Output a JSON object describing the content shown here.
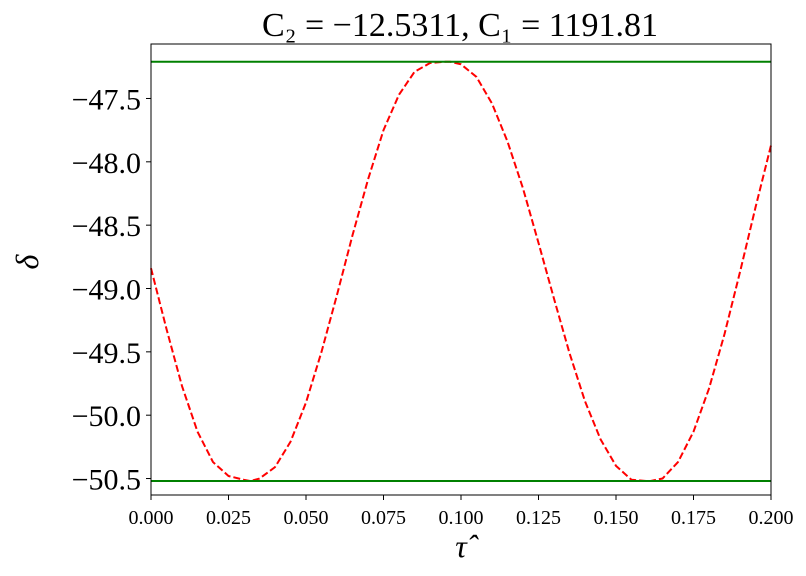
{
  "chart_data": {
    "type": "line",
    "title": "C₂ = −12.5311,  C₁ = 1191.81",
    "xlabel": "τ̂",
    "ylabel": "δ",
    "xlim": [
      0.0,
      0.2
    ],
    "ylim": [
      -50.63,
      -47.07
    ],
    "x_ticks": [
      0.0,
      0.025,
      0.05,
      0.075,
      0.1,
      0.125,
      0.15,
      0.175,
      0.2
    ],
    "x_tick_labels": [
      "0.000",
      "0.025",
      "0.050",
      "0.075",
      "0.100",
      "0.125",
      "0.150",
      "0.175",
      "0.200"
    ],
    "y_ticks": [
      -47.5,
      -48.0,
      -48.5,
      -49.0,
      -49.5,
      -50.0,
      -50.5
    ],
    "y_tick_labels": [
      "−47.5",
      "−48.0",
      "−48.5",
      "−49.0",
      "−49.5",
      "−50.0",
      "−50.5"
    ],
    "grid": false,
    "series": [
      {
        "style": "dashed",
        "color": "#ff0000",
        "x": [
          0.0,
          0.005,
          0.01,
          0.015,
          0.02,
          0.025,
          0.03,
          0.032,
          0.035,
          0.04,
          0.045,
          0.05,
          0.055,
          0.06,
          0.065,
          0.07,
          0.075,
          0.08,
          0.085,
          0.09,
          0.095,
          0.0965,
          0.1,
          0.105,
          0.11,
          0.115,
          0.12,
          0.125,
          0.13,
          0.135,
          0.14,
          0.145,
          0.15,
          0.155,
          0.16,
          0.161,
          0.165,
          0.17,
          0.175,
          0.18,
          0.185,
          0.19,
          0.195,
          0.2
        ],
        "y": [
          -48.84,
          -49.32,
          -49.77,
          -50.13,
          -50.37,
          -50.48,
          -50.51,
          -50.52,
          -50.5,
          -50.41,
          -50.21,
          -49.9,
          -49.5,
          -49.05,
          -48.58,
          -48.14,
          -47.75,
          -47.47,
          -47.29,
          -47.22,
          -47.21,
          -47.21,
          -47.23,
          -47.33,
          -47.54,
          -47.84,
          -48.21,
          -48.64,
          -49.08,
          -49.51,
          -49.89,
          -50.19,
          -50.4,
          -50.51,
          -50.52,
          -50.52,
          -50.5,
          -50.37,
          -50.13,
          -49.79,
          -49.36,
          -48.87,
          -48.36,
          -47.87
        ]
      },
      {
        "style": "solid",
        "color": "#008000",
        "x": [
          0.0,
          0.2
        ],
        "y": [
          -47.21,
          -47.21
        ]
      },
      {
        "style": "solid",
        "color": "#008000",
        "x": [
          0.0,
          0.2
        ],
        "y": [
          -50.52,
          -50.52
        ]
      }
    ]
  }
}
